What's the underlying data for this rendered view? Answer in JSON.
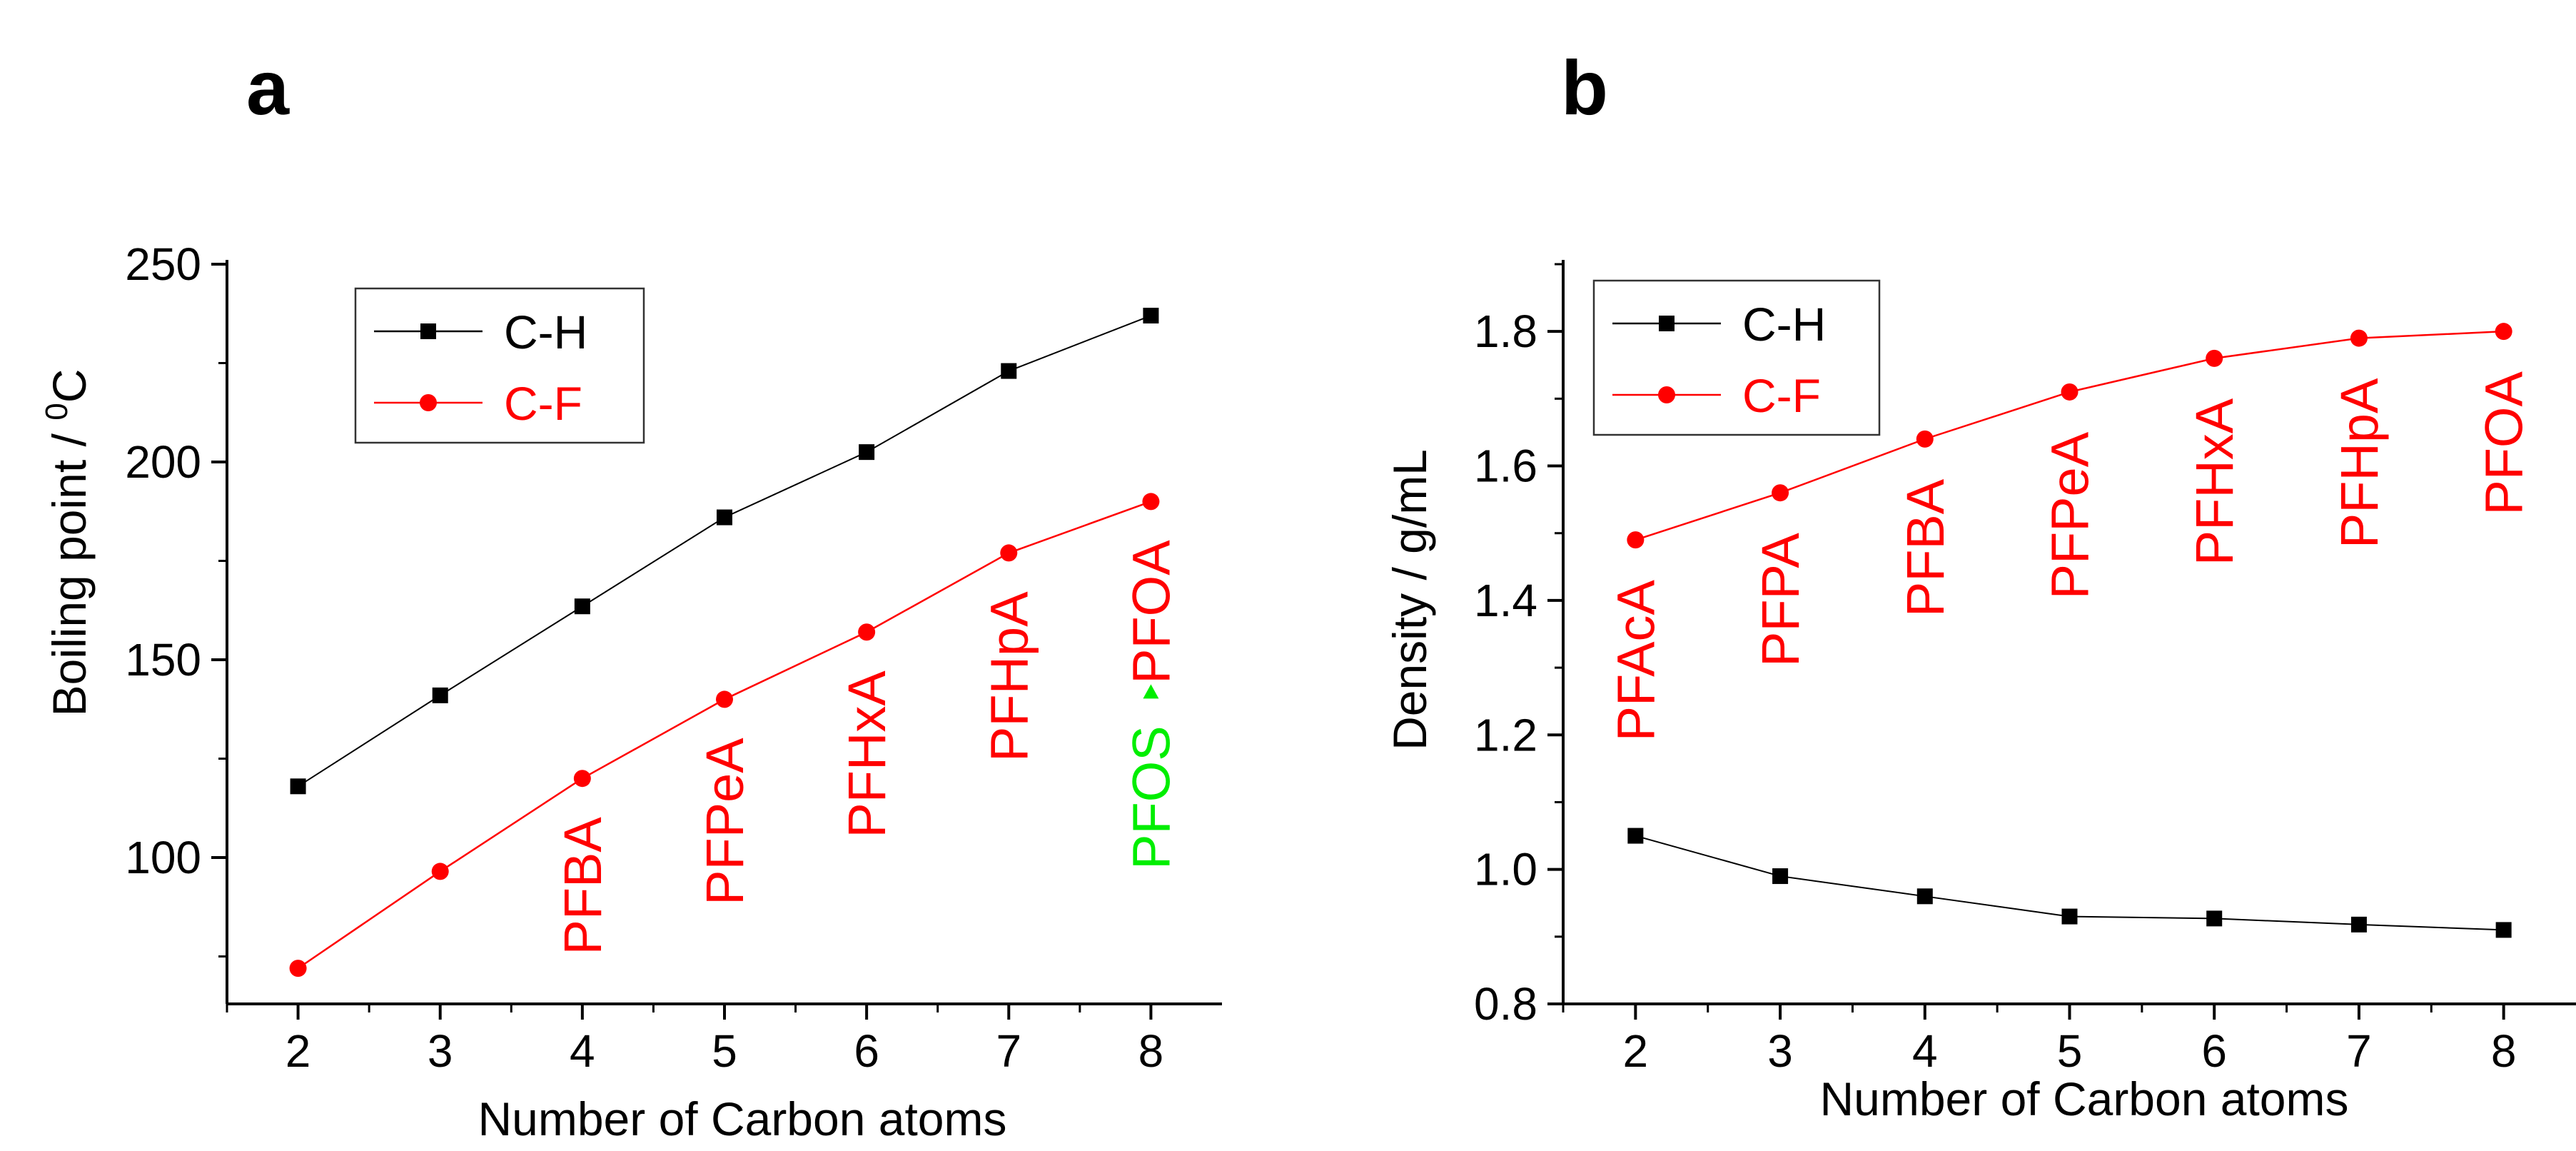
{
  "chart_data": [
    {
      "panel": "a",
      "type": "line",
      "xlabel": "Number of Carbon atoms",
      "ylabel": "Boiling point / ",
      "ylabel_sup": "0",
      "ylabel_unit": "C",
      "xlim": [
        1.5,
        8.5
      ],
      "ylim": [
        63,
        250
      ],
      "xticks": [
        2,
        3,
        4,
        5,
        6,
        7,
        8
      ],
      "yticks": [
        100,
        150,
        200,
        250
      ],
      "x": [
        2,
        3,
        4,
        5,
        6,
        7,
        8
      ],
      "series": [
        {
          "name": "C-H",
          "color": "#000000",
          "marker": "square",
          "values": [
            118,
            141,
            163.5,
            186,
            202.5,
            223,
            237
          ]
        },
        {
          "name": "C-F",
          "color": "#ff0000",
          "marker": "circle",
          "values": [
            72,
            96.5,
            120,
            140,
            157,
            177,
            190
          ]
        }
      ],
      "labels": [
        {
          "text": "PFBA",
          "x": 4,
          "y": 120,
          "color": "#ff0000"
        },
        {
          "text": "PFPeA",
          "x": 5,
          "y": 140,
          "color": "#ff0000"
        },
        {
          "text": "PFHxA",
          "x": 6,
          "y": 157,
          "color": "#ff0000"
        },
        {
          "text": "PFHpA",
          "x": 7,
          "y": 177,
          "color": "#ff0000"
        },
        {
          "text": "PFOA",
          "x": 8,
          "y": 190,
          "color": "#ff0000"
        },
        {
          "text": "PFOS",
          "x": 8,
          "y": 142,
          "color": "#00ee00",
          "marker": "triangle"
        }
      ]
    },
    {
      "panel": "b",
      "type": "line",
      "xlabel": "Number of Carbon atoms",
      "ylabel": "Density / g/mL",
      "xlim": [
        1.5,
        8.5
      ],
      "ylim": [
        0.8,
        1.9
      ],
      "xticks": [
        2,
        3,
        4,
        5,
        6,
        7,
        8
      ],
      "yticks": [
        0.8,
        1.0,
        1.2,
        1.4,
        1.6,
        1.8
      ],
      "x": [
        2,
        3,
        4,
        5,
        6,
        7,
        8
      ],
      "series": [
        {
          "name": "C-H",
          "color": "#000000",
          "marker": "square",
          "values": [
            1.05,
            0.99,
            0.96,
            0.93,
            0.927,
            0.918,
            0.91
          ]
        },
        {
          "name": "C-F",
          "color": "#ff0000",
          "marker": "circle",
          "values": [
            1.49,
            1.56,
            1.64,
            1.71,
            1.76,
            1.79,
            1.8
          ]
        }
      ],
      "labels": [
        {
          "text": "PFAcA",
          "x": 2,
          "y": 1.49,
          "color": "#ff0000"
        },
        {
          "text": "PFPA",
          "x": 3,
          "y": 1.56,
          "color": "#ff0000"
        },
        {
          "text": "PFBA",
          "x": 4,
          "y": 1.64,
          "color": "#ff0000"
        },
        {
          "text": "PFPeA",
          "x": 5,
          "y": 1.71,
          "color": "#ff0000"
        },
        {
          "text": "PFHxA",
          "x": 6,
          "y": 1.76,
          "color": "#ff0000"
        },
        {
          "text": "PFHpA",
          "x": 7,
          "y": 1.79,
          "color": "#ff0000"
        },
        {
          "text": "PFOA",
          "x": 8,
          "y": 1.8,
          "color": "#ff0000"
        }
      ]
    }
  ]
}
